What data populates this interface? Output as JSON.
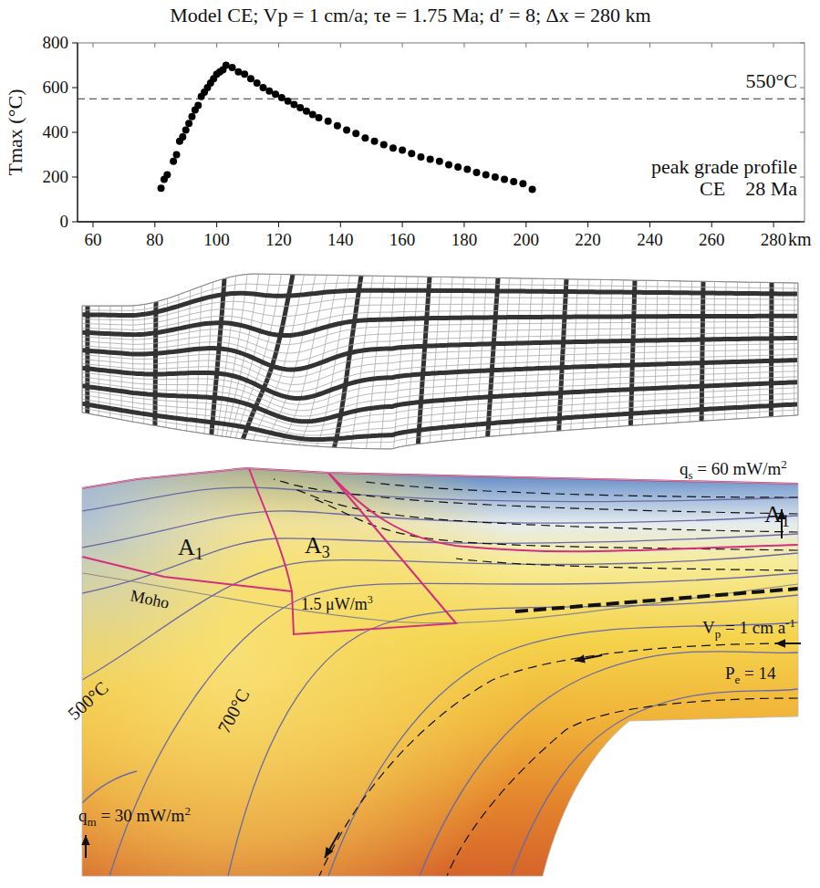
{
  "chart_data": {
    "type": "scatter",
    "title": "Model CE; Vp = 1 cm/a; τe = 1.75 Ma; d′ = 8; Δx = 280 km",
    "x_label": "km",
    "y_label": "Tmax (°C)",
    "x": [
      82,
      83,
      84,
      86,
      87,
      88,
      89,
      90,
      91,
      92,
      93,
      94,
      95,
      96,
      97,
      98,
      99,
      100,
      101,
      102,
      103,
      105,
      107,
      109,
      111,
      113,
      115,
      117,
      119,
      121,
      123,
      125,
      127,
      129,
      131,
      133,
      136,
      139,
      142,
      145,
      148,
      151,
      154,
      157,
      160,
      163,
      166,
      169,
      172,
      175,
      178,
      181,
      184,
      187,
      190,
      193,
      196,
      199,
      202
    ],
    "values": [
      150,
      190,
      210,
      270,
      300,
      360,
      380,
      410,
      440,
      470,
      500,
      520,
      560,
      580,
      600,
      620,
      640,
      660,
      670,
      680,
      700,
      690,
      670,
      660,
      640,
      620,
      600,
      585,
      570,
      555,
      540,
      525,
      510,
      495,
      480,
      465,
      450,
      430,
      410,
      395,
      375,
      360,
      345,
      330,
      320,
      305,
      290,
      280,
      270,
      255,
      245,
      235,
      220,
      210,
      200,
      190,
      180,
      170,
      145
    ],
    "color": "#000000",
    "marker": "circle",
    "xlim": [
      55,
      290
    ],
    "ylim": [
      0,
      800
    ],
    "xticks": [
      60,
      80,
      100,
      120,
      140,
      160,
      180,
      200,
      220,
      240,
      260,
      280
    ],
    "yticks": [
      0,
      200,
      400,
      600,
      800
    ],
    "reference_line": {
      "value": 550,
      "label": "550°C",
      "line_style": "dashed"
    },
    "annotations": [
      "peak grade profile",
      "CE    28 Ma"
    ]
  },
  "diagram": {
    "labels": [
      {
        "text": "q",
        "sub": "s",
        "tail": " = 60 mW/m",
        "sup": "2"
      },
      {
        "text": "A",
        "sub": "1"
      },
      {
        "text": "A",
        "sub": "1"
      },
      {
        "text": "A",
        "sub": "3"
      },
      {
        "text": "1.5 μW/m",
        "sup": "3"
      },
      {
        "text": "Moho"
      },
      {
        "text": "500°C"
      },
      {
        "text": "700°C"
      },
      {
        "text": "V",
        "sub": "p",
        "tail": " = 1 cm a",
        "sup": "-1"
      },
      {
        "text": "P",
        "sub": "e",
        "tail": " = 14"
      },
      {
        "text": "q",
        "sub": "m",
        "tail": " = 30 mW/m",
        "sup": "2"
      }
    ]
  }
}
